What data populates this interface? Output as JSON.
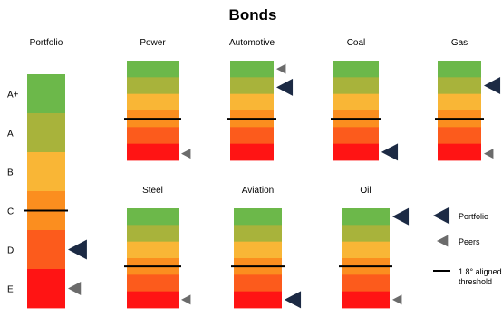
{
  "title": "Bonds",
  "colors": {
    "bands": [
      "#6cb84a",
      "#a8b33b",
      "#f9b636",
      "#fb8e1f",
      "#fc5b1c",
      "#ff1414"
    ],
    "portfolio_marker": "#1c2a44",
    "peers_marker": "#6b6b6b",
    "threshold": "#000000"
  },
  "chart_data": [
    {
      "type": "bar",
      "name": "Portfolio",
      "title": "Portfolio",
      "categories": [
        "A+",
        "A",
        "B",
        "C",
        "D",
        "E"
      ],
      "portfolio": "D",
      "peers": "E",
      "threshold": "C"
    },
    {
      "type": "bar",
      "title": "Power",
      "portfolio": null,
      "peers": 5.6,
      "threshold": 3.5
    },
    {
      "type": "bar",
      "title": "Automotive",
      "portfolio": 1.6,
      "peers": 0.5,
      "threshold": 3.5
    },
    {
      "type": "bar",
      "title": "Coal",
      "portfolio": 5.5,
      "peers": 5.5,
      "threshold": 3.5
    },
    {
      "type": "bar",
      "title": "Gas",
      "portfolio": 1.5,
      "peers": 5.6,
      "threshold": 3.5
    },
    {
      "type": "bar",
      "title": "Steel",
      "portfolio": null,
      "peers": 5.5,
      "threshold": 3.5
    },
    {
      "type": "bar",
      "title": "Aviation",
      "portfolio": 5.5,
      "peers": 5.5,
      "threshold": 3.5
    },
    {
      "type": "bar",
      "title": "Oil",
      "portfolio": 0.5,
      "peers": 5.5,
      "threshold": 3.5
    }
  ],
  "legend": [
    {
      "key": "portfolio",
      "label": "Portfolio"
    },
    {
      "key": "peers",
      "label": "Peers"
    },
    {
      "key": "threshold",
      "label": "1.8° aligned threshold"
    }
  ]
}
